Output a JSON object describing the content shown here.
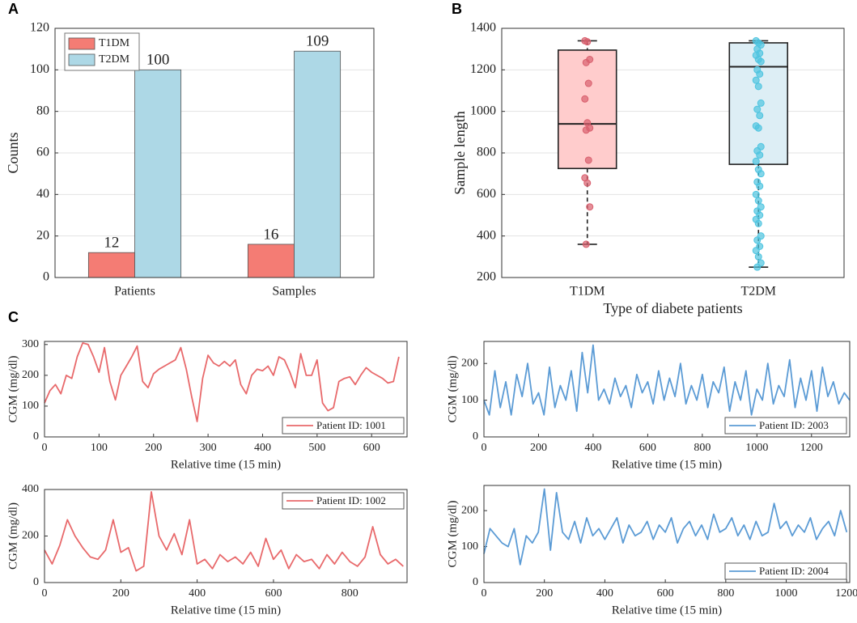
{
  "chart_data": [
    {
      "type": "bar",
      "panel": "A",
      "ylabel": "Counts",
      "categories": [
        "Patients",
        "Samples"
      ],
      "series": [
        {
          "name": "T1DM",
          "color": "#f47c74",
          "label_color": "#9e4a55",
          "values": [
            12,
            16
          ]
        },
        {
          "name": "T2DM",
          "color": "#add8e6",
          "label_color": "#2f3f99",
          "values": [
            100,
            109
          ]
        }
      ],
      "ylim": [
        0,
        120
      ],
      "yticks": [
        0,
        20,
        40,
        60,
        80,
        100,
        120
      ],
      "grid": true,
      "legend": "upper left"
    },
    {
      "type": "box",
      "panel": "B",
      "xlabel": "Type of diabete patients",
      "ylabel": "Sample length",
      "categories": [
        "T1DM",
        "T2DM"
      ],
      "boxes": [
        {
          "min": 360,
          "q1": 725,
          "median": 940,
          "q3": 1295,
          "max": 1340,
          "color": "#ffcccc",
          "point_color": "#d9606e",
          "points": [
            1340,
            1335,
            1250,
            1235,
            1135,
            1060,
            945,
            920,
            910,
            765,
            680,
            655,
            540,
            360
          ]
        },
        {
          "min": 250,
          "q1": 745,
          "median": 1215,
          "q3": 1330,
          "max": 1340,
          "color": "#ddeef5",
          "point_color": "#4ec4e0",
          "points": [
            1340,
            1330,
            1320,
            1300,
            1280,
            1270,
            1250,
            1240,
            1200,
            1180,
            1150,
            1120,
            1040,
            1010,
            980,
            930,
            920,
            830,
            810,
            790,
            760,
            720,
            700,
            660,
            640,
            600,
            570,
            540,
            520,
            500,
            480,
            460,
            400,
            380,
            350,
            330,
            300,
            270,
            250
          ]
        }
      ],
      "ylim": [
        200,
        1400
      ],
      "yticks": [
        200,
        400,
        600,
        800,
        1000,
        1200,
        1400
      ],
      "grid": true
    },
    {
      "type": "line",
      "panel": "C",
      "xlabel": "Relative time (15 min)",
      "ylabel": "CGM (mg/dl)",
      "series": [
        {
          "name": "Patient ID: 1001",
          "color": "#e8696b",
          "x": [
            0,
            10,
            20,
            30,
            40,
            50,
            60,
            70,
            80,
            90,
            100,
            110,
            120,
            130,
            140,
            150,
            160,
            170,
            180,
            190,
            200,
            210,
            220,
            230,
            240,
            250,
            260,
            270,
            280,
            290,
            300,
            310,
            320,
            330,
            340,
            350,
            360,
            370,
            380,
            390,
            400,
            410,
            420,
            430,
            440,
            450,
            460,
            470,
            480,
            490,
            500,
            510,
            520,
            530,
            540,
            550,
            560,
            570,
            580,
            590,
            600,
            610,
            620,
            630,
            640,
            650
          ],
          "values": [
            110,
            150,
            170,
            140,
            200,
            190,
            260,
            305,
            300,
            260,
            210,
            290,
            180,
            120,
            200,
            230,
            260,
            295,
            180,
            160,
            205,
            220,
            230,
            240,
            250,
            290,
            220,
            130,
            50,
            190,
            265,
            240,
            230,
            245,
            230,
            250,
            170,
            140,
            200,
            220,
            215,
            230,
            200,
            260,
            250,
            210,
            160,
            270,
            200,
            200,
            250,
            110,
            85,
            95,
            180,
            190,
            195,
            170,
            200,
            225,
            210,
            200,
            190,
            175,
            180,
            260
          ]
        }
      ],
      "xlim": [
        0,
        665
      ],
      "xticks": [
        0,
        100,
        200,
        300,
        400,
        500,
        600
      ],
      "ylim": [
        0,
        310
      ],
      "yticks": [
        0,
        100,
        200,
        300
      ],
      "legend": "lower right"
    },
    {
      "type": "line",
      "xlabel": "Relative time (15 min)",
      "ylabel": "CGM (mg/dl)",
      "series": [
        {
          "name": "Patient ID: 2003",
          "color": "#5b9bd5",
          "x": [
            0,
            20,
            40,
            60,
            80,
            100,
            120,
            140,
            160,
            180,
            200,
            220,
            240,
            260,
            280,
            300,
            320,
            340,
            360,
            380,
            400,
            420,
            440,
            460,
            480,
            500,
            520,
            540,
            560,
            580,
            600,
            620,
            640,
            660,
            680,
            700,
            720,
            740,
            760,
            780,
            800,
            820,
            840,
            860,
            880,
            900,
            920,
            940,
            960,
            980,
            1000,
            1020,
            1040,
            1060,
            1080,
            1100,
            1120,
            1140,
            1160,
            1180,
            1200,
            1220,
            1240,
            1260,
            1280,
            1300,
            1320,
            1340
          ],
          "values": [
            100,
            60,
            180,
            80,
            150,
            60,
            170,
            110,
            200,
            90,
            120,
            60,
            190,
            80,
            140,
            100,
            180,
            70,
            230,
            120,
            250,
            100,
            130,
            90,
            160,
            110,
            140,
            80,
            170,
            120,
            150,
            90,
            180,
            100,
            160,
            110,
            200,
            90,
            140,
            100,
            170,
            80,
            150,
            120,
            190,
            70,
            150,
            100,
            180,
            60,
            130,
            100,
            200,
            90,
            140,
            110,
            210,
            80,
            160,
            100,
            180,
            70,
            190,
            110,
            150,
            90,
            120,
            100
          ]
        }
      ],
      "xlim": [
        0,
        1340
      ],
      "xticks": [
        0,
        200,
        400,
        600,
        800,
        1000,
        1200
      ],
      "ylim": [
        0,
        260
      ],
      "yticks": [
        0,
        100,
        200
      ],
      "legend": "lower right"
    },
    {
      "type": "line",
      "xlabel": "Relative time (15 min)",
      "ylabel": "CGM (mg/dl)",
      "series": [
        {
          "name": "Patient ID: 1002",
          "color": "#e8696b",
          "x": [
            0,
            20,
            40,
            60,
            80,
            100,
            120,
            140,
            160,
            180,
            200,
            220,
            240,
            260,
            280,
            300,
            320,
            340,
            360,
            380,
            400,
            420,
            440,
            460,
            480,
            500,
            520,
            540,
            560,
            580,
            600,
            620,
            640,
            660,
            680,
            700,
            720,
            740,
            760,
            780,
            800,
            820,
            840,
            860,
            880,
            900,
            920,
            940
          ],
          "values": [
            140,
            80,
            160,
            270,
            200,
            150,
            110,
            100,
            140,
            270,
            130,
            150,
            50,
            70,
            390,
            200,
            140,
            210,
            120,
            270,
            80,
            100,
            60,
            120,
            90,
            110,
            80,
            130,
            70,
            190,
            100,
            140,
            60,
            120,
            90,
            100,
            60,
            120,
            80,
            130,
            90,
            70,
            110,
            240,
            120,
            80,
            100,
            70
          ]
        }
      ],
      "xlim": [
        0,
        950
      ],
      "xticks": [
        0,
        200,
        400,
        600,
        800
      ],
      "ylim": [
        0,
        400
      ],
      "yticks": [
        0,
        200,
        400
      ],
      "legend": "upper right"
    },
    {
      "type": "line",
      "xlabel": "Relative time (15 min)",
      "ylabel": "CGM (mg/dl)",
      "series": [
        {
          "name": "Patient ID: 2004",
          "color": "#5b9bd5",
          "x": [
            0,
            20,
            40,
            60,
            80,
            100,
            120,
            140,
            160,
            180,
            200,
            220,
            240,
            260,
            280,
            300,
            320,
            340,
            360,
            380,
            400,
            420,
            440,
            460,
            480,
            500,
            520,
            540,
            560,
            580,
            600,
            620,
            640,
            660,
            680,
            700,
            720,
            740,
            760,
            780,
            800,
            820,
            840,
            860,
            880,
            900,
            920,
            940,
            960,
            980,
            1000,
            1020,
            1040,
            1060,
            1080,
            1100,
            1120,
            1140,
            1160,
            1180,
            1200
          ],
          "values": [
            80,
            150,
            130,
            110,
            100,
            150,
            50,
            130,
            110,
            140,
            260,
            90,
            250,
            140,
            120,
            170,
            110,
            180,
            130,
            150,
            120,
            150,
            180,
            110,
            160,
            130,
            140,
            170,
            120,
            160,
            140,
            180,
            110,
            150,
            170,
            130,
            160,
            120,
            190,
            140,
            150,
            180,
            130,
            160,
            120,
            170,
            130,
            140,
            220,
            150,
            170,
            130,
            160,
            140,
            180,
            120,
            150,
            170,
            130,
            200,
            140
          ]
        }
      ],
      "xlim": [
        0,
        1210
      ],
      "xticks": [
        0,
        200,
        400,
        600,
        800,
        1000,
        1200
      ],
      "ylim": [
        0,
        270
      ],
      "yticks": [
        0,
        100,
        200
      ],
      "legend": "lower right"
    }
  ]
}
